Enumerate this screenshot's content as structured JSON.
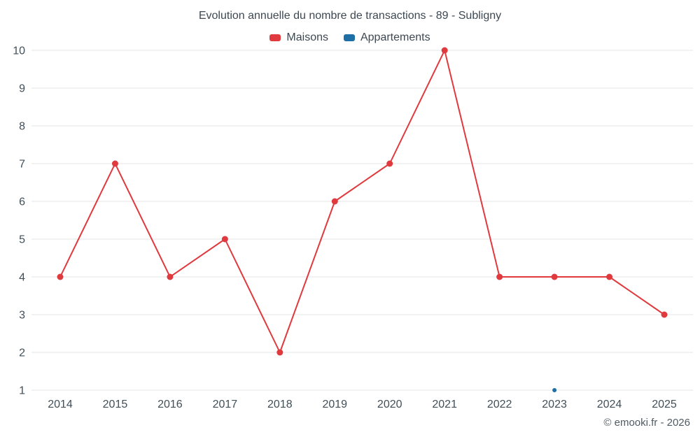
{
  "title": "Evolution annuelle du nombre de transactions - 89 - Subligny",
  "legend": [
    {
      "label": "Maisons",
      "color": "#e0393e"
    },
    {
      "label": "Appartements",
      "color": "#1d6fa5"
    }
  ],
  "footer": "© emooki.fr - 2026",
  "colors": {
    "maisons": "#e0393e",
    "appartements": "#1d6fa5",
    "grid": "#e6e6e6",
    "text": "#414f58"
  },
  "chart_data": {
    "type": "line",
    "title": "Evolution annuelle du nombre de transactions - 89 - Subligny",
    "categories": [
      "2014",
      "2015",
      "2016",
      "2017",
      "2018",
      "2019",
      "2020",
      "2021",
      "2022",
      "2023",
      "2024",
      "2025"
    ],
    "series": [
      {
        "name": "Maisons",
        "color": "#e0393e",
        "point_radius": 4.5,
        "values": [
          4,
          7,
          4,
          5,
          2,
          6,
          7,
          10,
          4,
          4,
          4,
          3
        ]
      },
      {
        "name": "Appartements",
        "color": "#1d6fa5",
        "point_radius": 3,
        "values": [
          null,
          null,
          null,
          null,
          null,
          null,
          null,
          null,
          null,
          1,
          null,
          null
        ]
      }
    ],
    "xlabel": "",
    "ylabel": "",
    "ylim": [
      1,
      10
    ],
    "yticks": [
      1,
      2,
      3,
      4,
      5,
      6,
      7,
      8,
      9,
      10
    ],
    "grid": true,
    "legend_position": "top"
  }
}
